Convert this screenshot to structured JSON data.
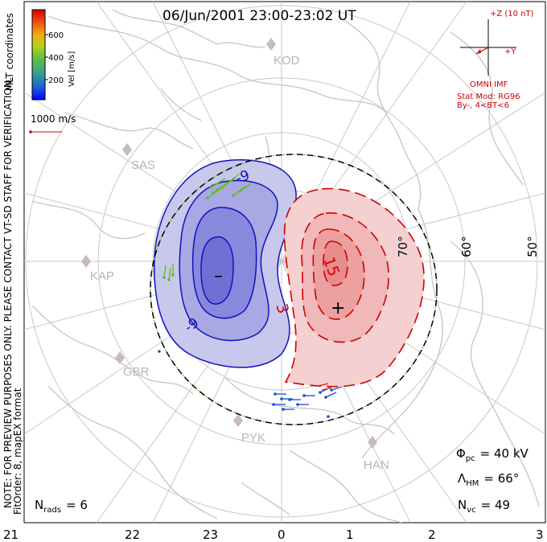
{
  "title": "06/Jun/2001 23:00-23:02 UT",
  "coords_label": "MLT coordinates",
  "colorbar": {
    "label": "Vel [m/s]",
    "ticks": [
      "600",
      "400",
      "200"
    ],
    "colors": [
      "#0000ff",
      "#1a6ad0",
      "#4ca87a",
      "#88c83a",
      "#c8d020",
      "#f0a010",
      "#f04010",
      "#e00000"
    ]
  },
  "vector_scale": {
    "label": "1000 m/s",
    "color": "#d00000"
  },
  "imf": {
    "z_label": "+Z (10 nT)",
    "y_label": "+Y",
    "source": "OMNI IMF",
    "model": "Stat Mod: RG96",
    "condition": "By-, 4<BT<6",
    "color": "#d00000"
  },
  "lat_labels": [
    "70°",
    "60°",
    "50°"
  ],
  "sites": [
    "KOD",
    "SAS",
    "KAP",
    "GBR",
    "PYK",
    "HAN"
  ],
  "contours": {
    "neg_label": "-9",
    "neg_label2": "-9",
    "pos_label": "15",
    "pos_label2": "3",
    "neg_fill": "#3030c0",
    "pos_fill": "#e04040"
  },
  "markers": {
    "min": "–",
    "max": "+"
  },
  "stats": {
    "phi_pc": "Φ",
    "phi_pc_sub": "pc",
    "phi_pc_value": "= 40 kV",
    "lambda_hm": "Λ",
    "lambda_hm_sub": "HM",
    "lambda_hm_value": "= 66°",
    "n_vc": "N",
    "n_vc_sub": "vc",
    "n_vc_value": "= 49",
    "n_rads": "N",
    "n_rads_sub": "rads",
    "n_rads_value": "= 6"
  },
  "side_note": "NOTE: FOR PREVIEW PURPOSES ONLY. PLEASE CONTACT VT-SD STAFF FOR VERIFICATION.",
  "fit_order": "FitOrder: 8, mapEX format",
  "mlt_ticks": [
    "21",
    "22",
    "23",
    "0",
    "1",
    "2",
    "3"
  ]
}
